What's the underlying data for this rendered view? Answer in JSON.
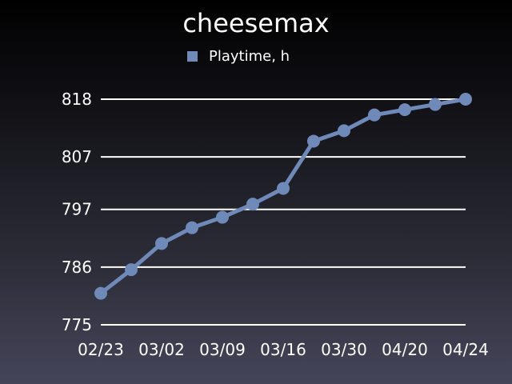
{
  "chart_data": {
    "type": "line",
    "title": "cheesemax",
    "xlabel": "",
    "ylabel": "",
    "legend_position": "top",
    "grid": true,
    "x_tick_labels": [
      "02/23",
      "03/02",
      "03/09",
      "03/16",
      "03/30",
      "04/20",
      "04/24"
    ],
    "y_ticks": [
      775,
      786,
      797,
      807,
      818
    ],
    "ylim": [
      775,
      818
    ],
    "series": [
      {
        "name": "Playtime, h",
        "color": "#6f89b8",
        "values": [
          781,
          785.5,
          790.5,
          793.5,
          795.5,
          798,
          801,
          810,
          812,
          815,
          816,
          817,
          818
        ]
      }
    ]
  }
}
